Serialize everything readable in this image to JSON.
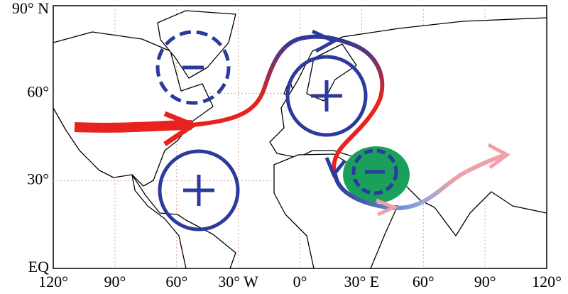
{
  "map": {
    "lat_labels": [
      "90° N",
      "60°",
      "30°",
      "EQ"
    ],
    "lon_labels": [
      "120°",
      "90°",
      "60°",
      "30° W",
      "0°",
      "30° E",
      "60°",
      "90°",
      "120°"
    ]
  }
}
